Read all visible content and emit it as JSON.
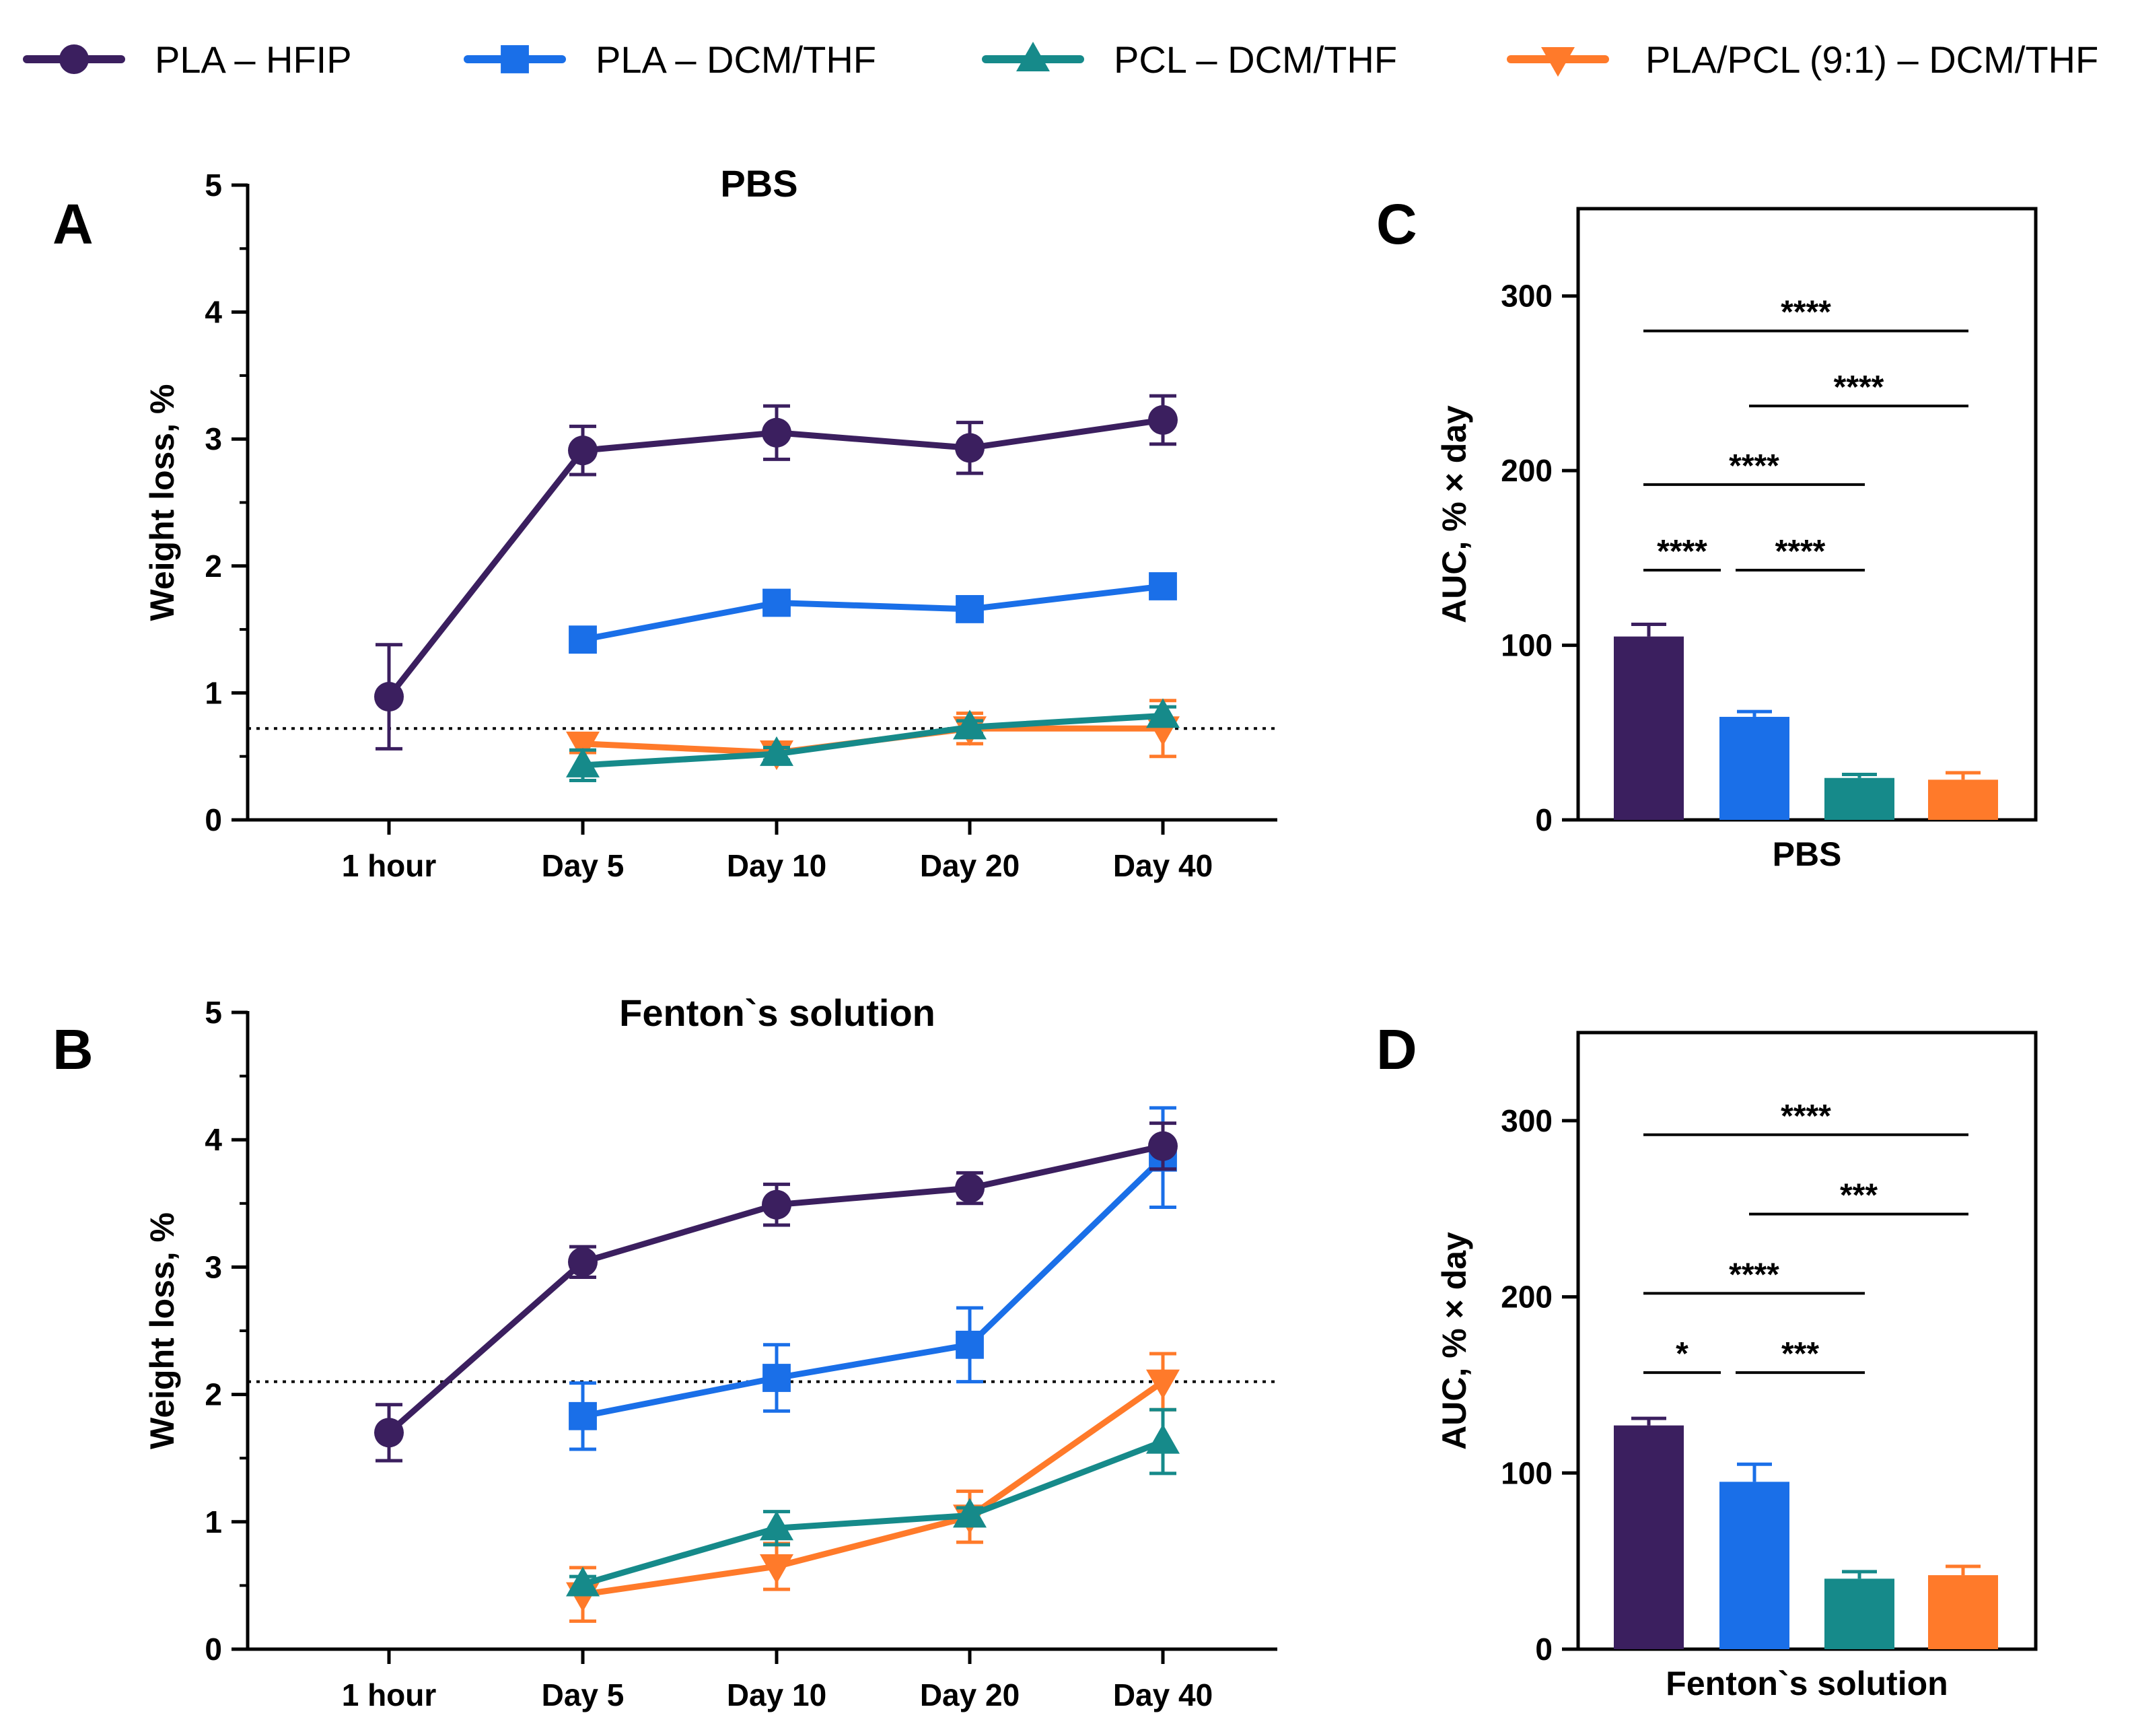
{
  "legend": [
    {
      "label": "PLA – HFIP",
      "color": "#3b1f5f",
      "marker": "circle"
    },
    {
      "label": "PLA – DCM/THF",
      "color": "#1a6fe8",
      "marker": "square"
    },
    {
      "label": "PCL – DCM/THF",
      "color": "#168a8a",
      "marker": "triangle-up"
    },
    {
      "label": "PLA/PCL (9:1) – DCM/THF",
      "color": "#ff7a2a",
      "marker": "triangle-down"
    }
  ],
  "chart_data": [
    {
      "panel": "A",
      "type": "line",
      "title": "PBS",
      "xlabel": "",
      "ylabel": "Weight loss, %",
      "categories": [
        "1 hour",
        "Day 5",
        "Day 10",
        "Day 20",
        "Day 40"
      ],
      "ylim": [
        0,
        5
      ],
      "yticks": [
        0,
        1,
        2,
        3,
        4,
        5
      ],
      "reference_line": 0.72,
      "series": [
        {
          "name": "PLA – HFIP",
          "values": [
            0.97,
            2.91,
            3.05,
            2.93,
            3.15
          ],
          "errors": [
            0.41,
            0.19,
            0.21,
            0.2,
            0.19
          ]
        },
        {
          "name": "PLA – DCM/THF",
          "values": [
            null,
            1.42,
            1.71,
            1.66,
            1.84
          ],
          "errors": [
            null,
            0.05,
            0.07,
            0.07,
            0.07
          ]
        },
        {
          "name": "PCL – DCM/THF",
          "values": [
            null,
            0.43,
            0.52,
            0.73,
            0.82
          ],
          "errors": [
            null,
            0.12,
            0.05,
            0.05,
            0.07
          ]
        },
        {
          "name": "PLA/PCL (9:1) – DCM/THF",
          "values": [
            null,
            0.6,
            0.53,
            0.72,
            0.72
          ],
          "errors": [
            null,
            0.07,
            0.06,
            0.12,
            0.22
          ]
        }
      ]
    },
    {
      "panel": "B",
      "type": "line",
      "title": "Fenton`s solution",
      "xlabel": "",
      "ylabel": "Weight loss, %",
      "categories": [
        "1 hour",
        "Day 5",
        "Day 10",
        "Day 20",
        "Day 40"
      ],
      "ylim": [
        0,
        5
      ],
      "yticks": [
        0,
        1,
        2,
        3,
        4,
        5
      ],
      "reference_line": 2.1,
      "series": [
        {
          "name": "PLA – HFIP",
          "values": [
            1.7,
            3.04,
            3.49,
            3.62,
            3.95
          ],
          "errors": [
            0.22,
            0.12,
            0.16,
            0.12,
            0.18
          ]
        },
        {
          "name": "PLA – DCM/THF",
          "values": [
            null,
            1.83,
            2.13,
            2.39,
            3.86
          ],
          "errors": [
            null,
            0.26,
            0.26,
            0.29,
            0.39
          ]
        },
        {
          "name": "PCL – DCM/THF",
          "values": [
            null,
            0.51,
            0.95,
            1.05,
            1.63
          ],
          "errors": [
            null,
            0.06,
            0.13,
            0.06,
            0.25
          ]
        },
        {
          "name": "PLA/PCL (9:1) – DCM/THF",
          "values": [
            null,
            0.43,
            0.65,
            1.04,
            2.1
          ],
          "errors": [
            null,
            0.21,
            0.18,
            0.2,
            0.22
          ]
        }
      ]
    },
    {
      "panel": "C",
      "type": "bar",
      "title": "",
      "xlabel": "PBS",
      "ylabel": "AUC, % × day",
      "categories": [
        "PLA – HFIP",
        "PLA – DCM/THF",
        "PCL – DCM/THF",
        "PLA/PCL (9:1) – DCM/THF"
      ],
      "values": [
        105,
        59,
        24,
        23
      ],
      "errors": [
        7,
        3,
        2,
        4
      ],
      "ylim": [
        0,
        350
      ],
      "yticks": [
        0,
        100,
        200,
        300
      ],
      "significance": [
        {
          "from": 0,
          "to": 3,
          "y": 280,
          "label": "****"
        },
        {
          "from": 1,
          "to": 3,
          "y": 237,
          "label": "****"
        },
        {
          "from": 0,
          "to": 2,
          "y": 192,
          "label": "****"
        },
        {
          "from": 0,
          "to": 1,
          "y": 143,
          "label": "****"
        },
        {
          "from": 1,
          "to": 2,
          "y": 143,
          "label": "****"
        }
      ]
    },
    {
      "panel": "D",
      "type": "bar",
      "title": "",
      "xlabel": "Fenton`s solution",
      "ylabel": "AUC, % × day",
      "categories": [
        "PLA – HFIP",
        "PLA – DCM/THF",
        "PCL – DCM/THF",
        "PLA/PCL (9:1) – DCM/THF"
      ],
      "values": [
        127,
        95,
        40,
        42
      ],
      "errors": [
        4,
        10,
        4,
        5
      ],
      "ylim": [
        0,
        350
      ],
      "yticks": [
        0,
        100,
        200,
        300
      ],
      "significance": [
        {
          "from": 0,
          "to": 3,
          "y": 292,
          "label": "****"
        },
        {
          "from": 1,
          "to": 3,
          "y": 247,
          "label": "***"
        },
        {
          "from": 0,
          "to": 2,
          "y": 202,
          "label": "****"
        },
        {
          "from": 0,
          "to": 1,
          "y": 157,
          "label": "*"
        },
        {
          "from": 1,
          "to": 2,
          "y": 157,
          "label": "***"
        }
      ]
    }
  ]
}
